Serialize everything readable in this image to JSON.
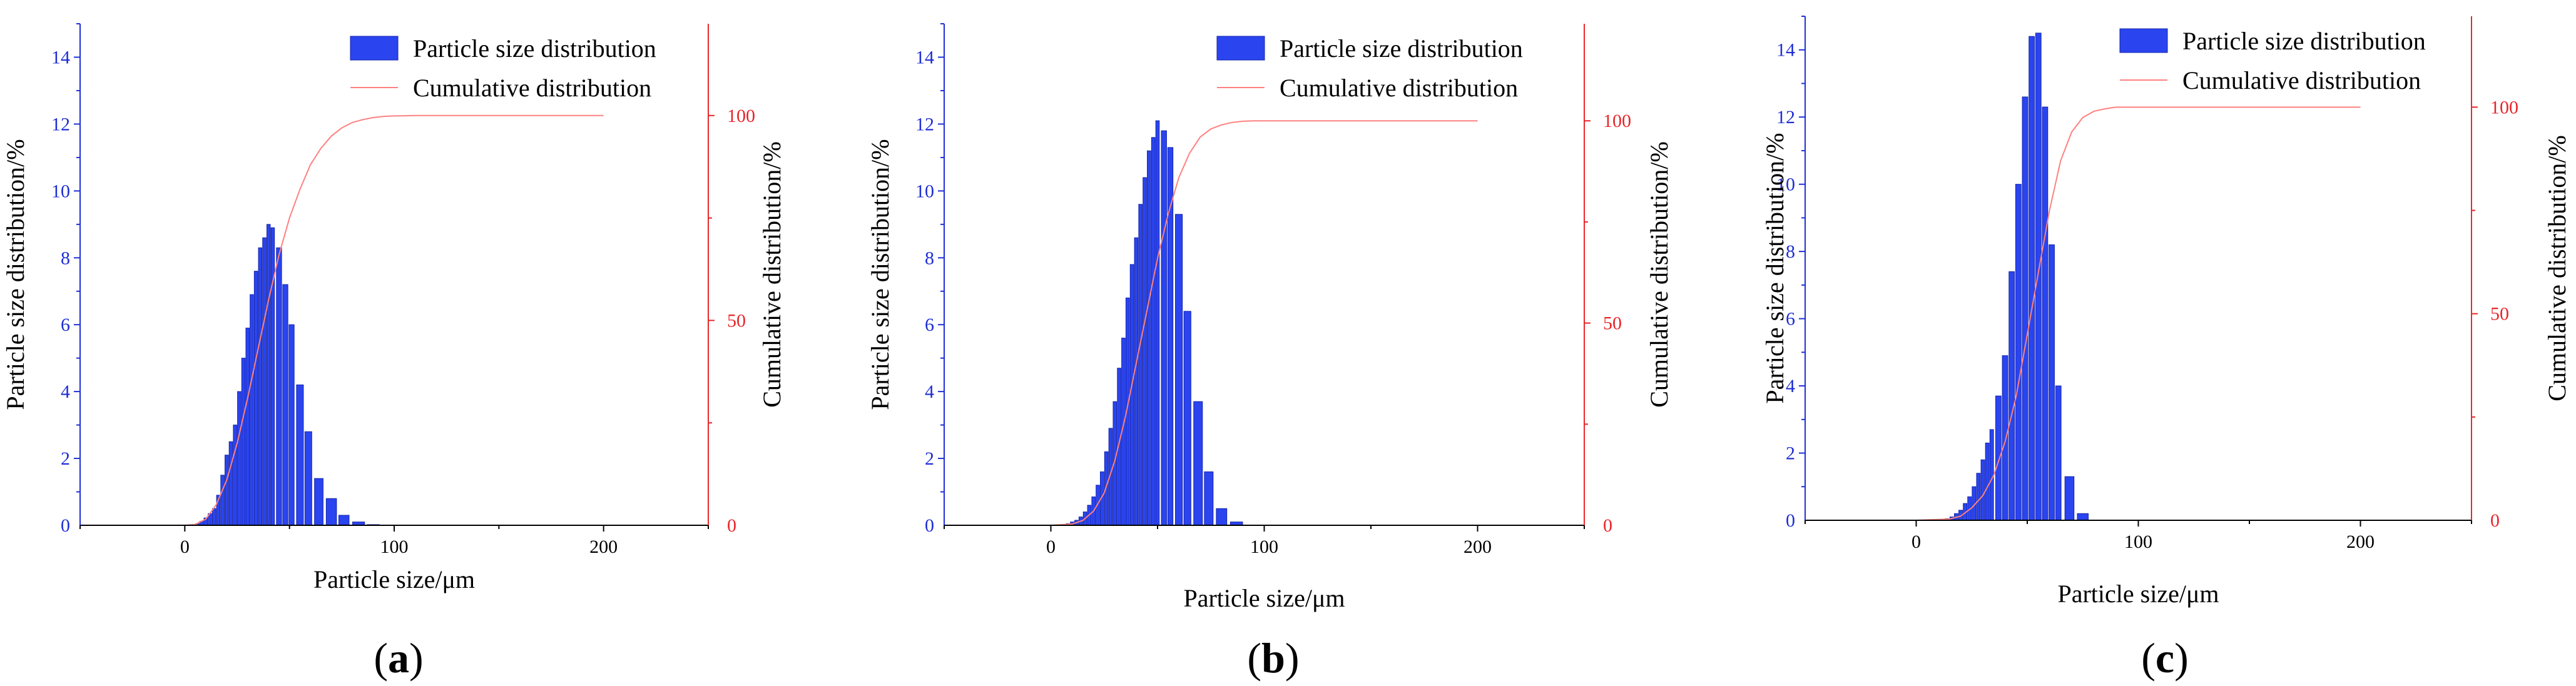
{
  "figure": {
    "panels": [
      {
        "label_open": "(",
        "label_letter": "a",
        "label_close": ")"
      },
      {
        "label_open": "(",
        "label_letter": "b",
        "label_close": ")"
      },
      {
        "label_open": "(",
        "label_letter": "c",
        "label_close": ")"
      }
    ],
    "colors": {
      "bars": "#2a44f0",
      "bar_edge": "#1424a8",
      "left_axis": "#1f2fd6",
      "right_axis": "#e8262a",
      "cumulative_line": "#ff8080",
      "bottom_axis": "#000000"
    }
  },
  "chart_data": [
    {
      "type": "bar",
      "panel": "a",
      "title": "",
      "xlabel": "Particle size/μm",
      "ylabel": "Particle size distribution/%",
      "y2label": "Cumulative distribution/%",
      "xlim": [
        -50,
        250
      ],
      "ylim": [
        0,
        15
      ],
      "y2lim": [
        0,
        122.4
      ],
      "xticks": [
        0,
        100,
        200
      ],
      "yticks": [
        0,
        2,
        4,
        6,
        8,
        10,
        12,
        14
      ],
      "y2ticks": [
        0,
        50,
        100
      ],
      "legend": {
        "bars": "Particle size distribution",
        "line": "Cumulative distribution",
        "position": "top-right"
      },
      "series": [
        {
          "name": "Particle size distribution",
          "kind": "bar",
          "x": [
            4,
            6,
            8,
            10,
            12,
            14,
            16,
            18,
            20,
            22,
            24,
            26,
            28,
            30,
            32,
            34,
            36,
            38,
            40,
            42,
            45,
            48,
            51,
            55,
            59,
            64,
            70,
            76,
            83,
            90,
            97,
            104
          ],
          "values": [
            0.02,
            0.05,
            0.12,
            0.22,
            0.35,
            0.5,
            0.9,
            1.5,
            2.1,
            2.5,
            3.0,
            4.0,
            5.0,
            5.9,
            6.9,
            7.6,
            8.3,
            8.6,
            9.0,
            8.9,
            8.3,
            7.2,
            6.0,
            4.2,
            2.8,
            1.4,
            0.8,
            0.3,
            0.1,
            0.02,
            0.0,
            0.0
          ]
        },
        {
          "name": "Cumulative distribution",
          "kind": "line",
          "x": [
            0,
            5,
            10,
            15,
            20,
            25,
            30,
            35,
            40,
            45,
            50,
            55,
            60,
            65,
            70,
            75,
            80,
            85,
            90,
            95,
            100,
            110,
            120,
            140,
            160,
            180,
            200
          ],
          "values": [
            0,
            0.2,
            1.5,
            5,
            11,
            20,
            31,
            43,
            55,
            66,
            75,
            82,
            88,
            92,
            95,
            97,
            98.3,
            99,
            99.5,
            99.8,
            99.9,
            100,
            100,
            100,
            100,
            100,
            100
          ]
        }
      ]
    },
    {
      "type": "bar",
      "panel": "b",
      "title": "",
      "xlabel": "Particle size/μm",
      "ylabel": "Particle size distribution/%",
      "y2label": "Cumulative distribution/%",
      "xlim": [
        -50,
        250
      ],
      "ylim": [
        0,
        15
      ],
      "y2lim": [
        0,
        124
      ],
      "xticks": [
        0,
        100,
        200
      ],
      "yticks": [
        0,
        2,
        4,
        6,
        8,
        10,
        12,
        14
      ],
      "y2ticks": [
        0,
        50,
        100
      ],
      "legend": {
        "bars": "Particle size distribution",
        "line": "Cumulative distribution",
        "position": "top-right"
      },
      "series": [
        {
          "name": "Particle size distribution",
          "kind": "bar",
          "x": [
            6,
            8,
            10,
            12,
            14,
            16,
            18,
            20,
            22,
            24,
            26,
            28,
            30,
            32,
            34,
            36,
            38,
            40,
            42,
            44,
            46,
            48,
            50,
            53,
            56,
            60,
            64,
            69,
            74,
            80,
            87,
            94,
            102,
            110
          ],
          "values": [
            0.02,
            0.05,
            0.1,
            0.15,
            0.25,
            0.4,
            0.6,
            0.85,
            1.2,
            1.6,
            2.2,
            2.9,
            3.7,
            4.7,
            5.6,
            6.8,
            7.8,
            8.6,
            9.6,
            10.4,
            11.2,
            11.6,
            12.1,
            11.8,
            11.3,
            9.3,
            6.4,
            3.7,
            1.6,
            0.5,
            0.1,
            0.0,
            0.0,
            0.0
          ]
        },
        {
          "name": "Cumulative distribution",
          "kind": "line",
          "x": [
            0,
            10,
            15,
            20,
            25,
            30,
            35,
            40,
            45,
            50,
            55,
            60,
            65,
            70,
            75,
            80,
            85,
            90,
            95,
            100,
            120,
            140,
            160,
            180,
            200
          ],
          "values": [
            0,
            0.3,
            1.2,
            3.5,
            8,
            16,
            27,
            40,
            53,
            66,
            77,
            86,
            92,
            96,
            98,
            99,
            99.6,
            99.9,
            100,
            100,
            100,
            100,
            100,
            100,
            100
          ]
        }
      ]
    },
    {
      "type": "bar",
      "panel": "c",
      "title": "",
      "xlabel": "Particle size/μm",
      "ylabel": "Particle size distribution/%",
      "y2label": "Cumulative distribution/%",
      "xlim": [
        -50,
        250
      ],
      "ylim": [
        0,
        15
      ],
      "y2lim": [
        0,
        122
      ],
      "xticks": [
        0,
        100,
        200
      ],
      "yticks": [
        0,
        2,
        4,
        6,
        8,
        10,
        12,
        14
      ],
      "y2ticks": [
        0,
        50,
        100
      ],
      "legend": {
        "bars": "Particle size distribution",
        "line": "Cumulative distribution",
        "position": "top-right"
      },
      "series": [
        {
          "name": "Particle size distribution",
          "kind": "bar",
          "x": [
            12,
            14,
            16,
            18,
            20,
            22,
            24,
            26,
            28,
            30,
            32,
            34,
            37,
            40,
            43,
            46,
            49,
            52,
            55,
            58,
            61,
            64,
            69,
            75,
            82,
            89,
            96,
            104
          ],
          "values": [
            0.02,
            0.05,
            0.1,
            0.2,
            0.3,
            0.5,
            0.7,
            1.0,
            1.4,
            1.8,
            2.3,
            2.7,
            3.7,
            4.9,
            7.4,
            10.0,
            12.6,
            14.4,
            14.5,
            12.3,
            8.2,
            4.0,
            1.3,
            0.2,
            0.0,
            0.0,
            0.0,
            0.0
          ]
        },
        {
          "name": "Cumulative distribution",
          "kind": "line",
          "x": [
            0,
            15,
            20,
            25,
            30,
            35,
            40,
            45,
            50,
            55,
            60,
            65,
            70,
            75,
            80,
            85,
            90,
            100,
            120,
            140,
            160,
            180,
            200
          ],
          "values": [
            0,
            0.3,
            1,
            3,
            6,
            11,
            19,
            30,
            45,
            60,
            75,
            87,
            94,
            97.5,
            99,
            99.6,
            100,
            100,
            100,
            100,
            100,
            100,
            100
          ]
        }
      ]
    }
  ]
}
